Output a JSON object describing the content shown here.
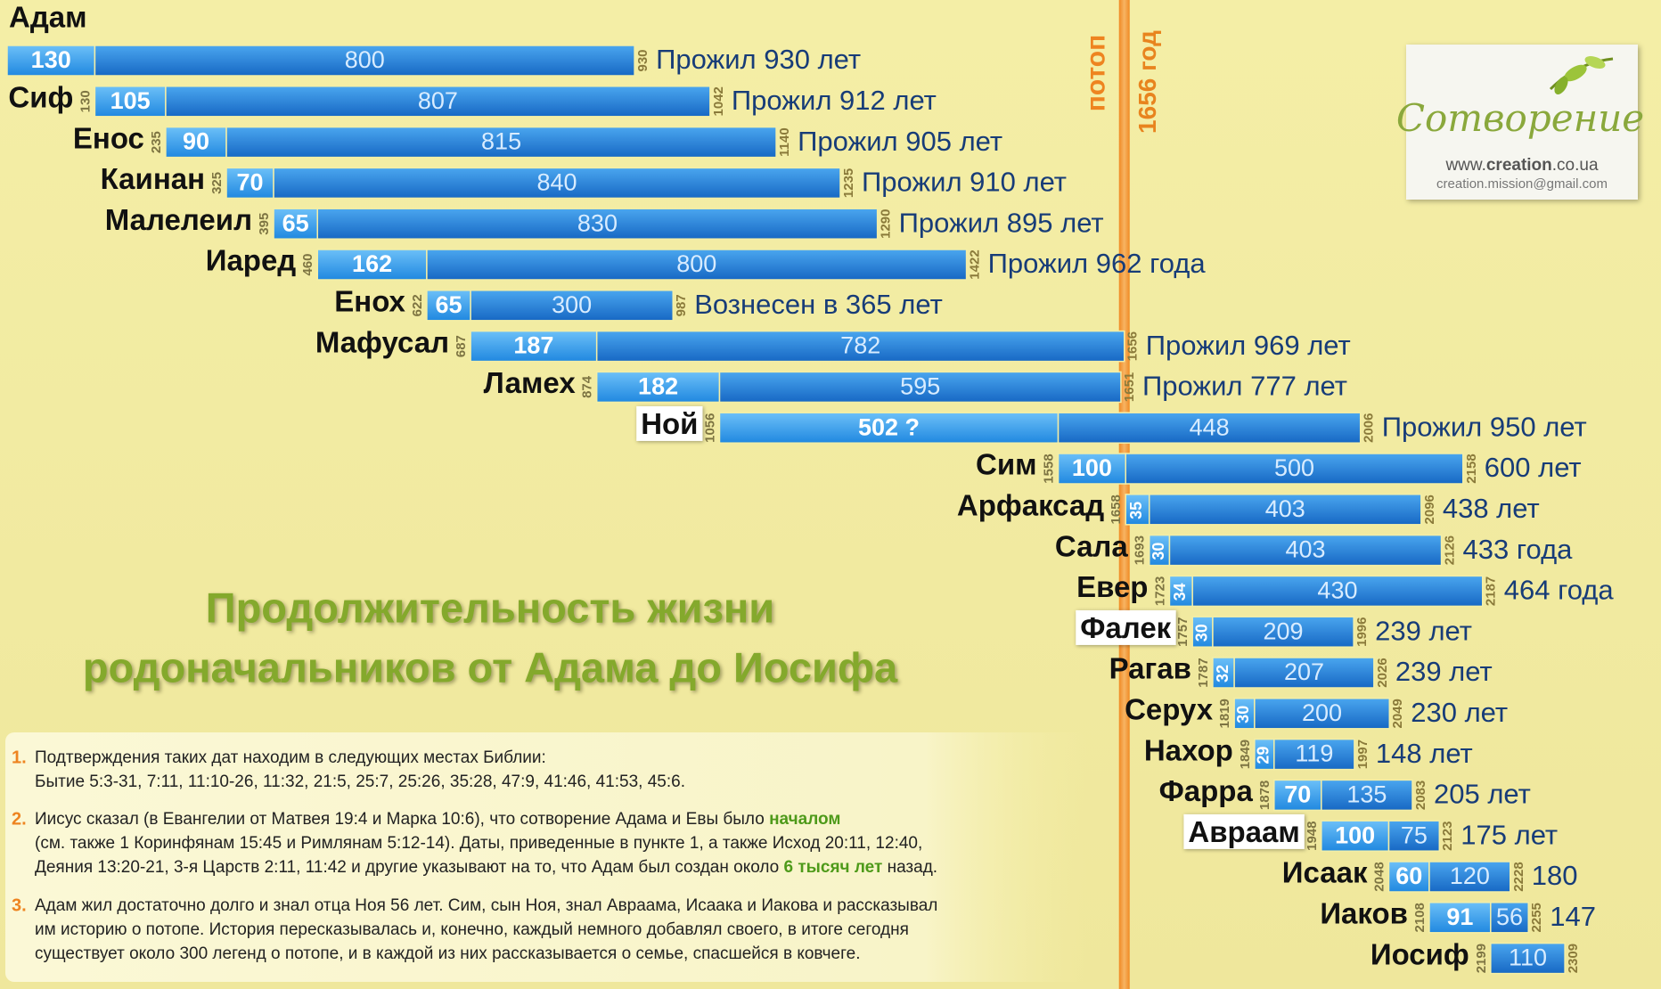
{
  "chart_data": {
    "type": "lifespan",
    "title_lines": [
      "Продолжительность жизни",
      "родоначальников от Адама до Иосифа"
    ],
    "xlim": [
      0,
      2400
    ],
    "colors": [
      "#3aa2f0",
      "#1f7fd6"
    ],
    "flood": {
      "name": "потоп",
      "value": 1656,
      "label": "1656 год"
    },
    "people": [
      {
        "name": "Адам",
        "values": [
          130,
          800
        ],
        "end": 930,
        "note": "Прожил 930 лет"
      },
      {
        "name": "Сиф",
        "start": 130,
        "values": [
          105,
          807
        ],
        "end": 1042,
        "note": "Прожил 912 лет"
      },
      {
        "name": "Енос",
        "start": 235,
        "values": [
          90,
          815
        ],
        "end": 1140,
        "note": "Прожил 905 лет"
      },
      {
        "name": "Каинан",
        "start": 325,
        "values": [
          70,
          840
        ],
        "end": 1235,
        "note": "Прожил 910 лет"
      },
      {
        "name": "Малелеил",
        "start": 395,
        "values": [
          65,
          830
        ],
        "end": 1290,
        "note": "Прожил 895 лет"
      },
      {
        "name": "Иаред",
        "start": 460,
        "values": [
          162,
          800
        ],
        "end": 1422,
        "note": "Прожил 962 года"
      },
      {
        "name": "Енох",
        "start": 622,
        "values": [
          65,
          300
        ],
        "end": 987,
        "note": "Вознесен в 365 лет"
      },
      {
        "name": "Мафусал",
        "start": 687,
        "values": [
          187,
          782
        ],
        "end": 1656,
        "note": "Прожил 969 лет"
      },
      {
        "name": "Ламех",
        "start": 874,
        "values": [
          182,
          595
        ],
        "end": 1651,
        "note": "Прожил 777 лет"
      },
      {
        "name": "Ной",
        "highlight": true,
        "start": 1056,
        "values": [
          502,
          448
        ],
        "value_labels": [
          "502 ?",
          "448"
        ],
        "end": 2006,
        "note": "Прожил 950 лет"
      },
      {
        "name": "Сим",
        "start": 1558,
        "values": [
          100,
          500
        ],
        "end": 2158,
        "note": "600 лет"
      },
      {
        "name": "Арфаксад",
        "start": 1658,
        "values": [
          35,
          403
        ],
        "end": 2096,
        "note": "438 лет"
      },
      {
        "name": "Сала",
        "start": 1693,
        "values": [
          30,
          403
        ],
        "end": 2126,
        "note": "433 года"
      },
      {
        "name": "Евер",
        "start": 1723,
        "values": [
          34,
          430
        ],
        "end": 2187,
        "note": "464 года"
      },
      {
        "name": "Фалек",
        "highlight": true,
        "start": 1757,
        "values": [
          30,
          209
        ],
        "end": 1996,
        "note": "239 лет"
      },
      {
        "name": "Рагав",
        "start": 1787,
        "values": [
          32,
          207
        ],
        "end": 2026,
        "note": "239 лет"
      },
      {
        "name": "Серух",
        "start": 1819,
        "values": [
          30,
          200
        ],
        "end": 2049,
        "note": "230 лет"
      },
      {
        "name": "Нахор",
        "start": 1849,
        "values": [
          29,
          119
        ],
        "end": 1997,
        "note": "148 лет"
      },
      {
        "name": "Фарра",
        "start": 1878,
        "values": [
          70,
          135
        ],
        "end": 2083,
        "note": "205 лет"
      },
      {
        "name": "Авраам",
        "highlight": true,
        "start": 1948,
        "values": [
          100,
          75
        ],
        "end": 2123,
        "note": "175 лет"
      },
      {
        "name": "Исаак",
        "start": 2048,
        "values": [
          60,
          120
        ],
        "end": 2228,
        "note": "180"
      },
      {
        "name": "Иаков",
        "start": 2108,
        "values": [
          91,
          56
        ],
        "end": 2255,
        "note": "147"
      },
      {
        "name": "Иосиф",
        "start": 2199,
        "values": [
          110
        ],
        "end": 2309
      }
    ]
  },
  "logo": {
    "title": "Сотворение",
    "site": [
      "www.",
      "creation",
      ".co.ua"
    ],
    "email": "creation.mission@gmail.com"
  },
  "notes": [
    {
      "number": "1.",
      "lines": [
        [
          "Подтверждения таких дат находим в следующих местах Библии:"
        ],
        [
          "Бытие 5:3-31, 7:11, 11:10-26, 11:32, 21:5, 25:7, 25:26, 35:28, 47:9, 41:46, 41:53, 45:6."
        ]
      ]
    },
    {
      "number": "2.",
      "lines": [
        [
          "Иисус сказал (в Евангелии от Матвея 19:4 и Марка 10:6), что сотворение Адама и Евы было ",
          {
            "text": "началом",
            "highlight": true
          }
        ],
        [
          "(см. также 1 Коринфянам 15:45 и Римлянам 5:12-14). Даты, приведенные в пункте 1, а также Исход 20:11, 12:40,"
        ],
        [
          "Деяния 13:20-21, 3-я Царств 2:11, 11:42 и другие указывают на то, что Адам был создан около ",
          {
            "text": "6 тысяч лет",
            "highlight": true
          },
          " назад."
        ]
      ]
    },
    {
      "number": "3.",
      "lines": [
        [
          "Адам жил достаточно долго и знал отца Ноя 56 лет. Сим, сын Ноя, знал Авраама, Исаака и Иакова и рассказывал"
        ],
        [
          "им историю о потопе. История пересказывалась и, конечно, каждый немного добавлял своего, в итоге сегодня"
        ],
        [
          "существует около 300 легенд о потопе, и в каждой из них рассказывается о семье, спасшейся в ковчеге."
        ]
      ]
    }
  ]
}
